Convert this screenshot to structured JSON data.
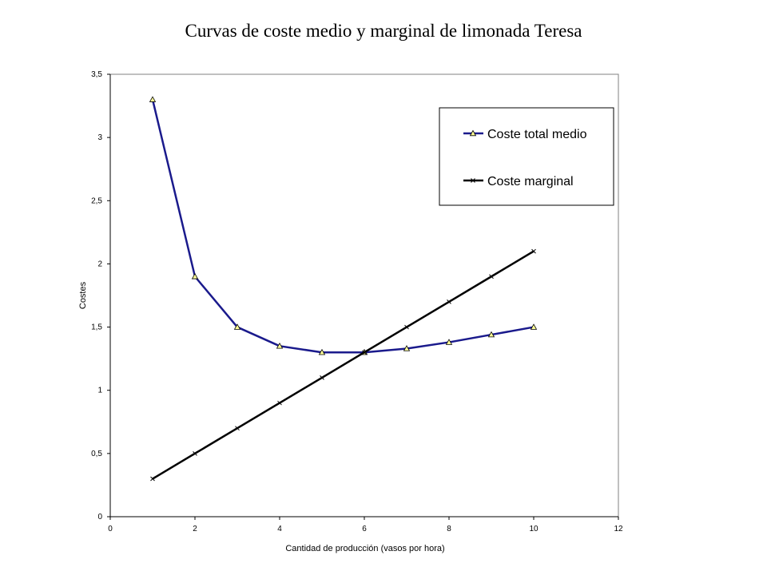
{
  "chart_data": {
    "type": "line",
    "title": "Curvas de coste medio y marginal de limonada Teresa",
    "xlabel": "Cantidad de producción (vasos por hora)",
    "ylabel": "Costes",
    "xlim": [
      0,
      12
    ],
    "ylim": [
      0,
      3.5
    ],
    "x_ticks": [
      "0",
      "2",
      "4",
      "6",
      "8",
      "10",
      "12"
    ],
    "y_ticks": [
      "0",
      "0,5",
      "1",
      "1,5",
      "2",
      "2,5",
      "3",
      "3,5"
    ],
    "grid": false,
    "legend_position": "top-right",
    "series": [
      {
        "name": "Coste total medio",
        "color": "#1a1a8c",
        "marker": "triangle",
        "x": [
          1,
          2,
          3,
          4,
          5,
          6,
          7,
          8,
          9,
          10
        ],
        "values": [
          3.3,
          1.9,
          1.5,
          1.35,
          1.3,
          1.3,
          1.33,
          1.38,
          1.44,
          1.5
        ]
      },
      {
        "name": "Coste marginal",
        "color": "#000000",
        "marker": "x",
        "x": [
          1,
          2,
          3,
          4,
          5,
          6,
          7,
          8,
          9,
          10
        ],
        "values": [
          0.3,
          0.5,
          0.7,
          0.9,
          1.1,
          1.3,
          1.5,
          1.7,
          1.9,
          2.1
        ]
      }
    ]
  }
}
